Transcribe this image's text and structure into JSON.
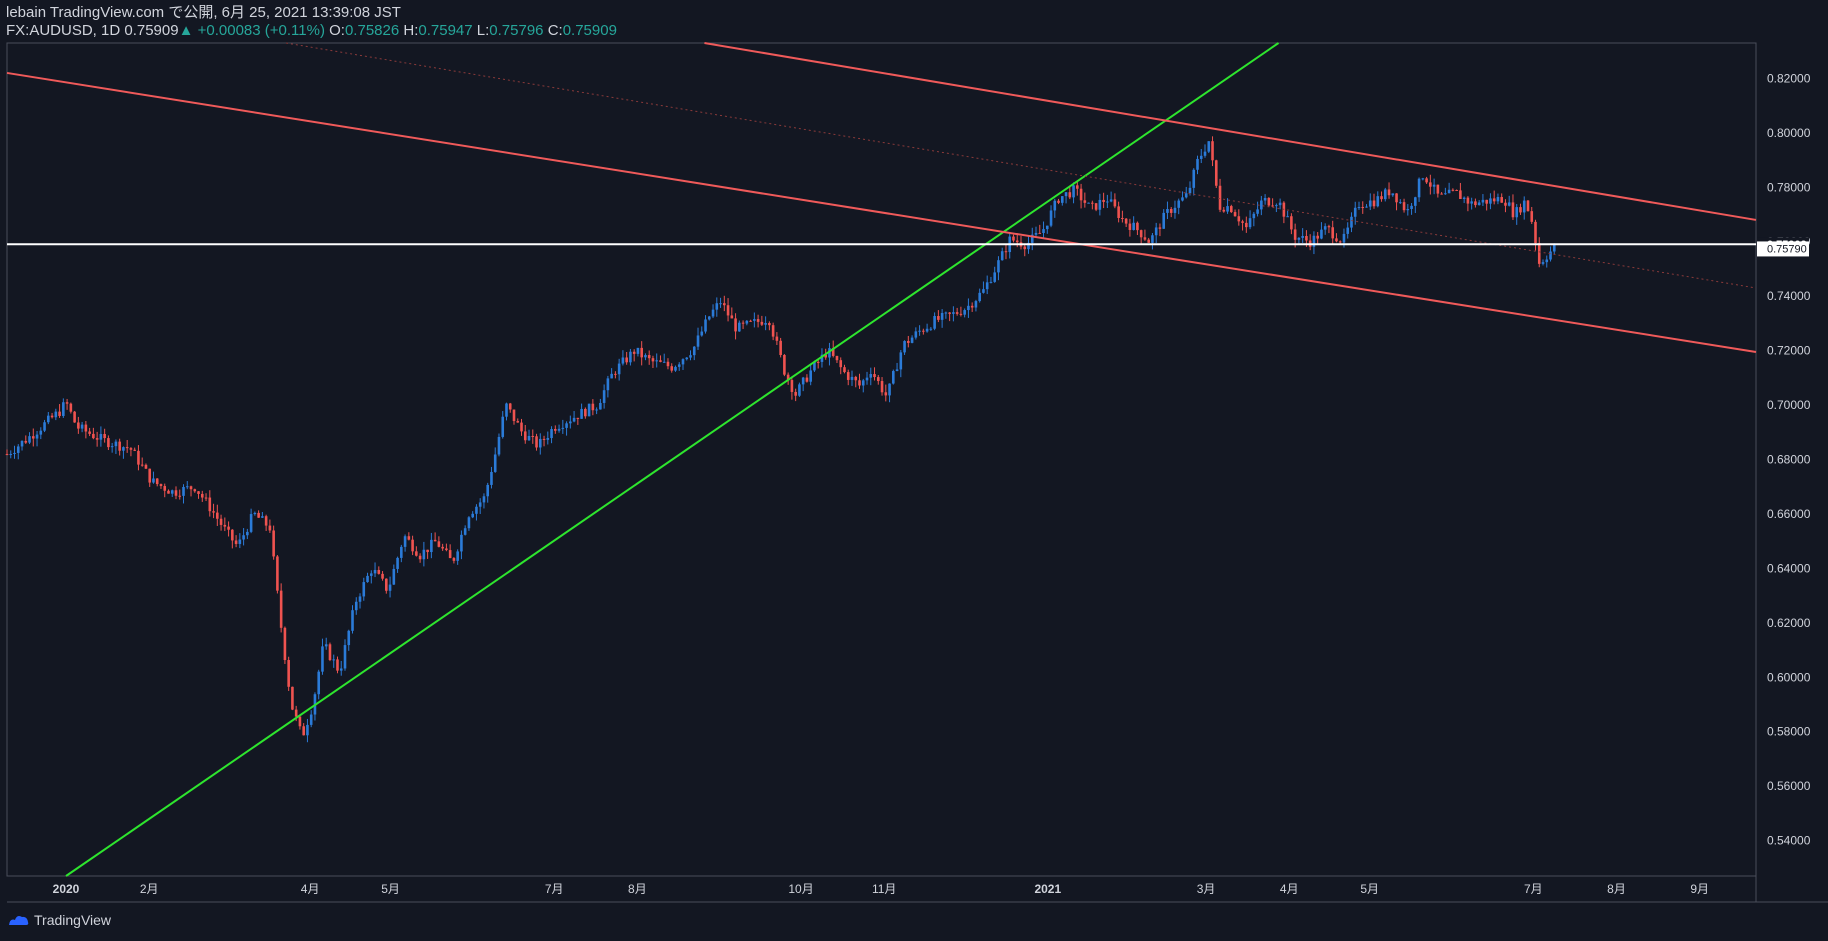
{
  "header": {
    "title": "lebain TradingView.com で公開, 6月 25, 2021 13:39:08 JST",
    "symbol": "FX:AUDUSD, 1D",
    "last": "0.75909",
    "arrow": "▲",
    "change": "+0.00083 (+0.11%)",
    "o_label": "O:",
    "o_value": "0.75826",
    "h_label": "H:",
    "h_value": "0.75947",
    "l_label": "L:",
    "l_value": "0.75796",
    "c_label": "C:",
    "c_value": "0.75909"
  },
  "colors": {
    "background": "#131722",
    "up": "#2b7bd8",
    "down": "#ef5350",
    "trend_green": "#2ee52e",
    "channel_red": "#f05a5a",
    "horizontal": "#ffffff",
    "grid_text": "#d1d4dc"
  },
  "footer": {
    "brand": "TradingView",
    "logo_icon": "tradingview-logo-icon"
  },
  "chart_data": {
    "type": "candlestick",
    "title": "FX:AUDUSD, 1D",
    "ylim": [
      0.527,
      0.833
    ],
    "y_ticks": [
      0.54,
      0.56,
      0.58,
      0.6,
      0.62,
      0.64,
      0.66,
      0.68,
      0.7,
      0.72,
      0.74,
      0.76,
      0.78,
      0.8,
      0.82
    ],
    "y_tick_labels": [
      "0.54000",
      "0.56000",
      "0.58000",
      "0.60000",
      "0.62000",
      "0.64000",
      "0.66000",
      "0.68000",
      "0.70000",
      "0.72000",
      "0.74000",
      "0.76000",
      "0.78000",
      "0.80000",
      "0.82000"
    ],
    "x_ticks": [
      {
        "label": "2020",
        "day": 0,
        "bold": true
      },
      {
        "label": "2月",
        "day": 31,
        "bold": false
      },
      {
        "label": "4月",
        "day": 91,
        "bold": false
      },
      {
        "label": "5月",
        "day": 121,
        "bold": false
      },
      {
        "label": "7月",
        "day": 182,
        "bold": false
      },
      {
        "label": "8月",
        "day": 213,
        "bold": false
      },
      {
        "label": "10月",
        "day": 274,
        "bold": false
      },
      {
        "label": "11月",
        "day": 305,
        "bold": false
      },
      {
        "label": "2021",
        "day": 366,
        "bold": true
      },
      {
        "label": "3月",
        "day": 425,
        "bold": false
      },
      {
        "label": "4月",
        "day": 456,
        "bold": false
      },
      {
        "label": "5月",
        "day": 486,
        "bold": false
      },
      {
        "label": "7月",
        "day": 547,
        "bold": false
      },
      {
        "label": "8月",
        "day": 578,
        "bold": false
      },
      {
        "label": "9月",
        "day": 609,
        "bold": false
      }
    ],
    "day_range": [
      -22,
      630
    ],
    "last_price_label": "0.75909",
    "last_price": 0.75909,
    "secondary_price_label": "0.75790",
    "secondary_price": 0.7579,
    "price_path": [
      {
        "day": -22,
        "price": 0.682
      },
      {
        "day": -14,
        "price": 0.688
      },
      {
        "day": -2,
        "price": 0.698
      },
      {
        "day": 0,
        "price": 0.701
      },
      {
        "day": 4,
        "price": 0.692
      },
      {
        "day": 14,
        "price": 0.687
      },
      {
        "day": 24,
        "price": 0.684
      },
      {
        "day": 32,
        "price": 0.672
      },
      {
        "day": 40,
        "price": 0.668
      },
      {
        "day": 48,
        "price": 0.67
      },
      {
        "day": 54,
        "price": 0.662
      },
      {
        "day": 60,
        "price": 0.653
      },
      {
        "day": 64,
        "price": 0.648
      },
      {
        "day": 70,
        "price": 0.66
      },
      {
        "day": 76,
        "price": 0.655
      },
      {
        "day": 80,
        "price": 0.62
      },
      {
        "day": 84,
        "price": 0.59
      },
      {
        "day": 88,
        "price": 0.578
      },
      {
        "day": 92,
        "price": 0.59
      },
      {
        "day": 96,
        "price": 0.612
      },
      {
        "day": 102,
        "price": 0.602
      },
      {
        "day": 108,
        "price": 0.628
      },
      {
        "day": 114,
        "price": 0.64
      },
      {
        "day": 120,
        "price": 0.632
      },
      {
        "day": 126,
        "price": 0.652
      },
      {
        "day": 132,
        "price": 0.645
      },
      {
        "day": 138,
        "price": 0.65
      },
      {
        "day": 144,
        "price": 0.642
      },
      {
        "day": 150,
        "price": 0.66
      },
      {
        "day": 156,
        "price": 0.666
      },
      {
        "day": 160,
        "price": 0.682
      },
      {
        "day": 164,
        "price": 0.7
      },
      {
        "day": 170,
        "price": 0.69
      },
      {
        "day": 176,
        "price": 0.685
      },
      {
        "day": 182,
        "price": 0.692
      },
      {
        "day": 190,
        "price": 0.696
      },
      {
        "day": 198,
        "price": 0.7
      },
      {
        "day": 204,
        "price": 0.712
      },
      {
        "day": 212,
        "price": 0.72
      },
      {
        "day": 218,
        "price": 0.716
      },
      {
        "day": 226,
        "price": 0.714
      },
      {
        "day": 234,
        "price": 0.721
      },
      {
        "day": 240,
        "price": 0.733
      },
      {
        "day": 244,
        "price": 0.738
      },
      {
        "day": 250,
        "price": 0.728
      },
      {
        "day": 256,
        "price": 0.73
      },
      {
        "day": 262,
        "price": 0.732
      },
      {
        "day": 268,
        "price": 0.712
      },
      {
        "day": 272,
        "price": 0.704
      },
      {
        "day": 278,
        "price": 0.713
      },
      {
        "day": 284,
        "price": 0.72
      },
      {
        "day": 290,
        "price": 0.712
      },
      {
        "day": 296,
        "price": 0.707
      },
      {
        "day": 300,
        "price": 0.713
      },
      {
        "day": 306,
        "price": 0.703
      },
      {
        "day": 312,
        "price": 0.722
      },
      {
        "day": 318,
        "price": 0.727
      },
      {
        "day": 324,
        "price": 0.731
      },
      {
        "day": 330,
        "price": 0.733
      },
      {
        "day": 336,
        "price": 0.736
      },
      {
        "day": 342,
        "price": 0.742
      },
      {
        "day": 348,
        "price": 0.753
      },
      {
        "day": 352,
        "price": 0.761
      },
      {
        "day": 358,
        "price": 0.759
      },
      {
        "day": 364,
        "price": 0.764
      },
      {
        "day": 370,
        "price": 0.776
      },
      {
        "day": 376,
        "price": 0.779
      },
      {
        "day": 382,
        "price": 0.772
      },
      {
        "day": 388,
        "price": 0.776
      },
      {
        "day": 394,
        "price": 0.768
      },
      {
        "day": 400,
        "price": 0.764
      },
      {
        "day": 404,
        "price": 0.76
      },
      {
        "day": 410,
        "price": 0.77
      },
      {
        "day": 414,
        "price": 0.774
      },
      {
        "day": 418,
        "price": 0.777
      },
      {
        "day": 422,
        "price": 0.79
      },
      {
        "day": 426,
        "price": 0.797
      },
      {
        "day": 430,
        "price": 0.773
      },
      {
        "day": 434,
        "price": 0.773
      },
      {
        "day": 440,
        "price": 0.765
      },
      {
        "day": 446,
        "price": 0.775
      },
      {
        "day": 452,
        "price": 0.775
      },
      {
        "day": 458,
        "price": 0.762
      },
      {
        "day": 464,
        "price": 0.76
      },
      {
        "day": 470,
        "price": 0.765
      },
      {
        "day": 476,
        "price": 0.76
      },
      {
        "day": 482,
        "price": 0.774
      },
      {
        "day": 488,
        "price": 0.775
      },
      {
        "day": 494,
        "price": 0.779
      },
      {
        "day": 500,
        "price": 0.771
      },
      {
        "day": 506,
        "price": 0.785
      },
      {
        "day": 512,
        "price": 0.776
      },
      {
        "day": 518,
        "price": 0.778
      },
      {
        "day": 524,
        "price": 0.774
      },
      {
        "day": 530,
        "price": 0.775
      },
      {
        "day": 536,
        "price": 0.776
      },
      {
        "day": 540,
        "price": 0.77
      },
      {
        "day": 544,
        "price": 0.775
      },
      {
        "day": 547,
        "price": 0.766
      },
      {
        "day": 549,
        "price": 0.752
      },
      {
        "day": 552,
        "price": 0.755
      },
      {
        "day": 556,
        "price": 0.759
      }
    ],
    "trendlines": [
      {
        "name": "green-uptrend",
        "color": "#2ee52e",
        "from": {
          "day": 0,
          "price": 0.527
        },
        "to": {
          "day": 452,
          "price": 0.833
        }
      },
      {
        "name": "red-channel-upper",
        "color": "#f05a5a",
        "from": {
          "day": 238,
          "price": 0.833
        },
        "to": {
          "day": 630,
          "price": 0.768
        }
      },
      {
        "name": "red-channel-lower",
        "color": "#f05a5a",
        "from": {
          "day": -22,
          "price": 0.822
        },
        "to": {
          "day": 630,
          "price": 0.7195
        }
      },
      {
        "name": "red-channel-middle-dotted",
        "color": "#8a3a3a",
        "from": {
          "day": 82,
          "price": 0.833
        },
        "to": {
          "day": 630,
          "price": 0.743
        }
      }
    ]
  }
}
